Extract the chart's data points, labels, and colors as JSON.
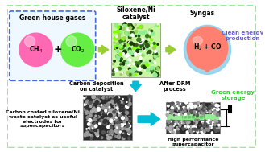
{
  "bg_color": "#ffffff",
  "border_color": "#90ee90",
  "top_left_label": "Green house gases",
  "top_mid_label": "Siloxene/Ni\ncatalyst",
  "top_right_label": "Syngas",
  "clean_energy_label": "Clean energy\nproduction",
  "carbon_dep_label": "Carbon deposition\non catalyst",
  "after_drm_label": "After DRM\nprocess",
  "bottom_left_label": "Carbon coated siloxene/Ni\nwaste catalyst as useful\nelectrodes for\nsupercapacitors",
  "bottom_right_label": "High performance\nsupercapacitor",
  "green_energy_label": "Green energy\nstorage",
  "ch4_color": "#ff69b4",
  "co2_color": "#66ee44",
  "syngas_balloon_color": "#ff8070",
  "syngas_balloon_outline": "#87ceeb",
  "arrow_green_color": "#9acd32",
  "arrow_cyan_color": "#00bcd4",
  "catalyst_bg": "#c8f5a0",
  "dashed_box_color": "#4169e1",
  "clean_energy_text_color": "#6a5acd",
  "green_energy_text_color": "#32cd32",
  "spent_catalyst_bg": "#2a2a2a",
  "supercap_bg": "#2a2a2a",
  "supercap_green_bar": "#90ee90"
}
